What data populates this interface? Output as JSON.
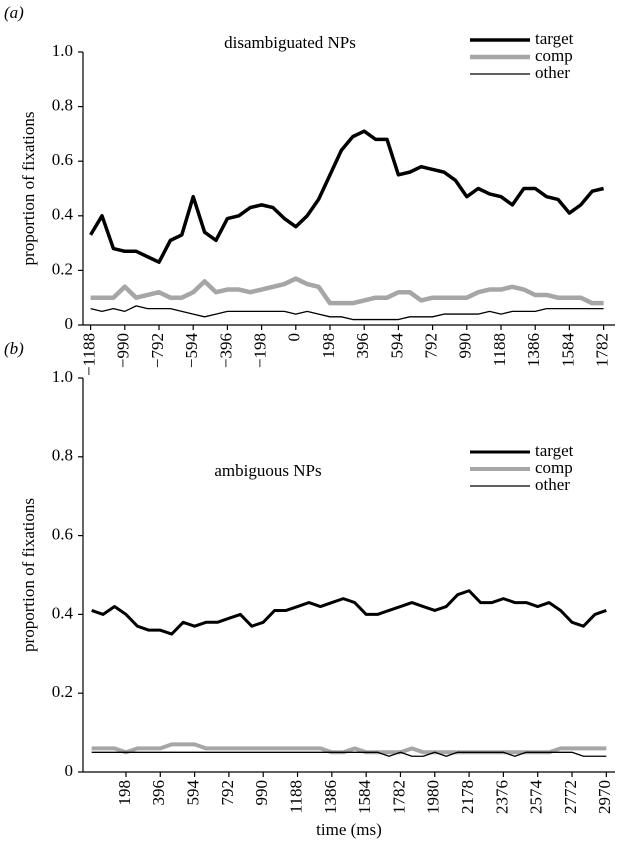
{
  "chart_data": [
    {
      "type": "line",
      "panel_label": "(a)",
      "title": "disambiguated NPs",
      "ylabel": "proportion of fixations",
      "x": [
        -1188,
        -1122,
        -1056,
        -990,
        -924,
        -858,
        -792,
        -726,
        -660,
        -594,
        -528,
        -462,
        -396,
        -330,
        -264,
        -198,
        -132,
        -66,
        0,
        66,
        132,
        198,
        264,
        330,
        396,
        462,
        528,
        594,
        660,
        726,
        792,
        858,
        924,
        990,
        1056,
        1122,
        1188,
        1254,
        1320,
        1386,
        1452,
        1518,
        1584,
        1650,
        1716,
        1782
      ],
      "series": [
        {
          "name": "target",
          "color": "#000000",
          "width": 3.5,
          "values": [
            0.33,
            0.4,
            0.28,
            0.27,
            0.27,
            0.25,
            0.23,
            0.31,
            0.33,
            0.47,
            0.34,
            0.31,
            0.39,
            0.4,
            0.43,
            0.44,
            0.43,
            0.39,
            0.36,
            0.4,
            0.46,
            0.55,
            0.64,
            0.69,
            0.71,
            0.68,
            0.68,
            0.55,
            0.56,
            0.58,
            0.57,
            0.56,
            0.53,
            0.47,
            0.5,
            0.48,
            0.47,
            0.44,
            0.5,
            0.5,
            0.47,
            0.46,
            0.41,
            0.44,
            0.49,
            0.5
          ]
        },
        {
          "name": "comp",
          "color": "#a6a6a6",
          "width": 4.5,
          "values": [
            0.1,
            0.1,
            0.1,
            0.14,
            0.1,
            0.11,
            0.12,
            0.1,
            0.1,
            0.12,
            0.16,
            0.12,
            0.13,
            0.13,
            0.12,
            0.13,
            0.14,
            0.15,
            0.17,
            0.15,
            0.14,
            0.08,
            0.08,
            0.08,
            0.09,
            0.1,
            0.1,
            0.12,
            0.12,
            0.09,
            0.1,
            0.1,
            0.1,
            0.1,
            0.12,
            0.13,
            0.13,
            0.14,
            0.13,
            0.11,
            0.11,
            0.1,
            0.1,
            0.1,
            0.08,
            0.08
          ]
        },
        {
          "name": "other",
          "color": "#000000",
          "width": 1.3,
          "values": [
            0.06,
            0.05,
            0.06,
            0.05,
            0.07,
            0.06,
            0.06,
            0.06,
            0.05,
            0.04,
            0.03,
            0.04,
            0.05,
            0.05,
            0.05,
            0.05,
            0.05,
            0.05,
            0.04,
            0.05,
            0.04,
            0.03,
            0.03,
            0.02,
            0.02,
            0.02,
            0.02,
            0.02,
            0.03,
            0.03,
            0.03,
            0.04,
            0.04,
            0.04,
            0.04,
            0.05,
            0.04,
            0.05,
            0.05,
            0.05,
            0.06,
            0.06,
            0.06,
            0.06,
            0.06,
            0.06
          ]
        }
      ],
      "xlim": [
        -1232,
        1848
      ],
      "xticks": [
        {
          "value": -1188,
          "label": "−1188"
        },
        {
          "value": -990,
          "label": "−990"
        },
        {
          "value": -792,
          "label": "−792"
        },
        {
          "value": -594,
          "label": "−594"
        },
        {
          "value": -396,
          "label": "−396"
        },
        {
          "value": -198,
          "label": "−198"
        },
        0,
        198,
        396,
        594,
        792,
        990,
        1188,
        1386,
        1584,
        1782
      ],
      "ylim": [
        0,
        1
      ],
      "yticks": [
        0,
        0.2,
        0.4,
        0.6,
        0.8,
        {
          "value": 1,
          "label": "1.0"
        }
      ],
      "legend": "upper right"
    },
    {
      "type": "line",
      "panel_label": "(b)",
      "title": "ambiguous NPs",
      "ylabel": "proportion of fixations",
      "xlabel": "time (ms)",
      "x": [
        0,
        66,
        132,
        198,
        264,
        330,
        396,
        462,
        528,
        594,
        660,
        726,
        792,
        858,
        924,
        990,
        1056,
        1122,
        1188,
        1254,
        1320,
        1386,
        1452,
        1518,
        1584,
        1650,
        1716,
        1782,
        1848,
        1914,
        1980,
        2046,
        2112,
        2178,
        2244,
        2310,
        2376,
        2442,
        2508,
        2574,
        2640,
        2706,
        2772,
        2838,
        2904,
        2970
      ],
      "series": [
        {
          "name": "target",
          "color": "#000000",
          "width": 3,
          "values": [
            0.41,
            0.4,
            0.42,
            0.4,
            0.37,
            0.36,
            0.36,
            0.35,
            0.38,
            0.37,
            0.38,
            0.38,
            0.39,
            0.4,
            0.37,
            0.38,
            0.41,
            0.41,
            0.42,
            0.43,
            0.42,
            0.43,
            0.44,
            0.43,
            0.4,
            0.4,
            0.41,
            0.42,
            0.43,
            0.42,
            0.41,
            0.42,
            0.45,
            0.46,
            0.43,
            0.43,
            0.44,
            0.43,
            0.43,
            0.42,
            0.43,
            0.41,
            0.38,
            0.37,
            0.4,
            0.41
          ]
        },
        {
          "name": "comp",
          "color": "#a6a6a6",
          "width": 4,
          "values": [
            0.06,
            0.06,
            0.06,
            0.05,
            0.06,
            0.06,
            0.06,
            0.07,
            0.07,
            0.07,
            0.06,
            0.06,
            0.06,
            0.06,
            0.06,
            0.06,
            0.06,
            0.06,
            0.06,
            0.06,
            0.06,
            0.05,
            0.05,
            0.06,
            0.05,
            0.05,
            0.05,
            0.05,
            0.06,
            0.05,
            0.05,
            0.05,
            0.05,
            0.05,
            0.05,
            0.05,
            0.05,
            0.05,
            0.05,
            0.05,
            0.05,
            0.06,
            0.06,
            0.06,
            0.06,
            0.06
          ]
        },
        {
          "name": "other",
          "color": "#000000",
          "width": 1.3,
          "values": [
            0.05,
            0.05,
            0.05,
            0.05,
            0.05,
            0.05,
            0.05,
            0.05,
            0.05,
            0.05,
            0.05,
            0.05,
            0.05,
            0.05,
            0.05,
            0.05,
            0.05,
            0.05,
            0.05,
            0.05,
            0.05,
            0.05,
            0.05,
            0.05,
            0.05,
            0.05,
            0.04,
            0.05,
            0.04,
            0.04,
            0.05,
            0.04,
            0.05,
            0.05,
            0.05,
            0.05,
            0.05,
            0.04,
            0.05,
            0.05,
            0.05,
            0.05,
            0.05,
            0.04,
            0.04,
            0.04
          ]
        }
      ],
      "xlim": [
        -50,
        3020
      ],
      "xticks": [
        198,
        396,
        594,
        792,
        990,
        1188,
        1386,
        1584,
        1782,
        1980,
        2178,
        2376,
        2574,
        2772,
        2970
      ],
      "ylim": [
        0,
        1
      ],
      "yticks": [
        0,
        0.2,
        0.4,
        0.6,
        0.8,
        {
          "value": 1,
          "label": "1.0"
        }
      ],
      "legend": "upper right"
    }
  ]
}
